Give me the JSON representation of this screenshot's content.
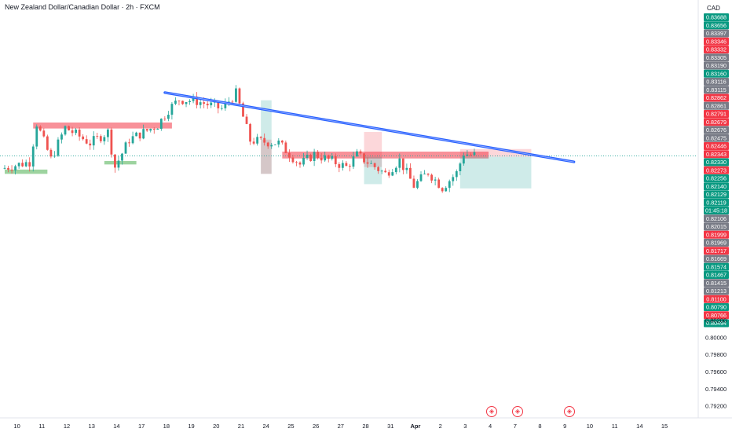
{
  "header": {
    "title": "New Zealand Dollar/Canadian Dollar · 2h · FXCM",
    "currency": "CAD"
  },
  "colors": {
    "up": "#26a69a",
    "down": "#ef5350",
    "trend": "#2962ff",
    "resist": "#f23645",
    "support": "#4caf50"
  },
  "chart_data": {
    "type": "candlestick",
    "ylim": [
      0.7915,
      0.8374
    ],
    "current_price": "0.82119",
    "countdown": "01:45:18",
    "price_tags": [
      {
        "label": "0.83688",
        "color": "#089981"
      },
      {
        "label": "0.83656",
        "color": "#089981"
      },
      {
        "label": "0.83397",
        "color": "#787b86"
      },
      {
        "label": "0.83346",
        "color": "#f23645"
      },
      {
        "label": "0.83332",
        "color": "#f23645"
      },
      {
        "label": "0.83305",
        "color": "#787b86"
      },
      {
        "label": "0.83190",
        "color": "#787b86"
      },
      {
        "label": "0.83160",
        "color": "#089981"
      },
      {
        "label": "0.83116",
        "color": "#787b86"
      },
      {
        "label": "0.83115",
        "color": "#787b86"
      },
      {
        "label": "0.82862",
        "color": "#f23645"
      },
      {
        "label": "0.82861",
        "color": "#787b86"
      },
      {
        "label": "0.82791",
        "color": "#f23645"
      },
      {
        "label": "0.82679",
        "color": "#f23645"
      },
      {
        "label": "0.82676",
        "color": "#787b86"
      },
      {
        "label": "0.82475",
        "color": "#787b86"
      },
      {
        "label": "0.82446",
        "color": "#f23645"
      },
      {
        "label": "0.82343",
        "color": "#f23645"
      },
      {
        "label": "0.82330",
        "color": "#089981"
      },
      {
        "label": "0.82273",
        "color": "#f23645"
      },
      {
        "label": "0.82256",
        "color": "#089981"
      },
      {
        "label": "0.82140",
        "color": "#089981"
      },
      {
        "label": "0.82129",
        "color": "#089981"
      },
      {
        "label": "0.82119",
        "color": "#089981"
      },
      {
        "label": "01:45:18",
        "color": "#089981"
      },
      {
        "label": "0.82106",
        "color": "#787b86"
      },
      {
        "label": "0.82015",
        "color": "#787b86"
      },
      {
        "label": "0.81999",
        "color": "#f23645"
      },
      {
        "label": "0.81969",
        "color": "#787b86"
      },
      {
        "label": "0.81717",
        "color": "#f23645"
      },
      {
        "label": "0.81669",
        "color": "#787b86"
      },
      {
        "label": "0.81574",
        "color": "#089981"
      },
      {
        "label": "0.81467",
        "color": "#089981"
      },
      {
        "label": "0.81415",
        "color": "#787b86"
      },
      {
        "label": "0.81213",
        "color": "#787b86"
      },
      {
        "label": "0.81100",
        "color": "#f23645"
      },
      {
        "label": "0.80790",
        "color": "#089981"
      },
      {
        "label": "0.80766",
        "color": "#f23645"
      },
      {
        "label": "0.80494",
        "color": "#089981"
      }
    ],
    "y_ticks": [
      {
        "value": 0.802,
        "label": "0.80200"
      },
      {
        "value": 0.8,
        "label": "0.80000"
      },
      {
        "value": 0.798,
        "label": "0.79800"
      },
      {
        "value": 0.796,
        "label": "0.79600"
      },
      {
        "value": 0.794,
        "label": "0.79400"
      },
      {
        "value": 0.792,
        "label": "0.79200"
      }
    ],
    "x_ticks": [
      "",
      "10",
      "11",
      "12",
      "13",
      "14",
      "17",
      "18",
      "19",
      "20",
      "21",
      "24",
      "25",
      "26",
      "27",
      "28",
      "31",
      "Apr",
      "2",
      "3",
      "4",
      "7",
      "8",
      "9",
      "10",
      "11",
      "14",
      "15"
    ],
    "x_tick_slot": [
      0,
      3,
      10,
      17,
      24,
      31,
      38,
      45,
      52,
      59,
      66,
      73,
      80,
      87,
      94,
      101,
      108,
      115,
      122,
      129,
      136,
      143,
      150,
      157,
      164,
      171,
      178,
      185
    ],
    "trendline": [
      [
        45,
        0.8286
      ],
      [
        160,
        0.8205
      ]
    ],
    "zones": [
      {
        "kind": "resist",
        "from": 8,
        "to": 47,
        "top": 0.8251,
        "bottom": 0.8244
      },
      {
        "kind": "support",
        "from": 0,
        "to": 12,
        "top": 0.8196,
        "bottom": 0.8191
      },
      {
        "kind": "support",
        "from": 28,
        "to": 37,
        "top": 0.8206,
        "bottom": 0.8202
      },
      {
        "kind": "resist",
        "from": 78,
        "to": 136,
        "top": 0.8217,
        "bottom": 0.8209
      },
      {
        "kind": "green_box",
        "from": 72,
        "to": 75,
        "top": 0.8277,
        "bottom": 0.8191
      },
      {
        "kind": "red_box",
        "from": 72,
        "to": 75,
        "top": 0.8231,
        "bottom": 0.8191
      },
      {
        "kind": "red_box",
        "from": 101,
        "to": 106,
        "top": 0.824,
        "bottom": 0.8199
      },
      {
        "kind": "green_box",
        "from": 101,
        "to": 106,
        "top": 0.8211,
        "bottom": 0.8179
      },
      {
        "kind": "red_box",
        "from": 128,
        "to": 148,
        "top": 0.822,
        "bottom": 0.8211
      },
      {
        "kind": "green_box",
        "from": 128,
        "to": 148,
        "top": 0.8211,
        "bottom": 0.8174
      }
    ]
  }
}
